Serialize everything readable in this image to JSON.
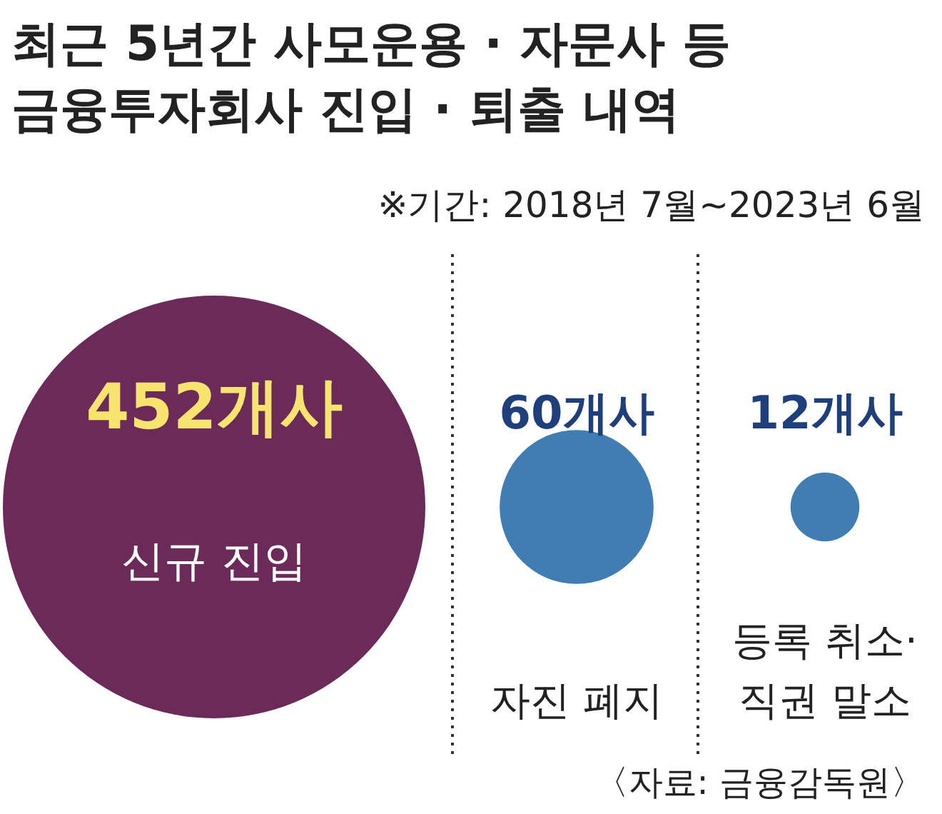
{
  "chart_data": {
    "type": "other",
    "title": "최근 5년간 사모운용 · 자문사 등 금융투자회사 진입 · 퇴출 내역",
    "subtitle": "※기간: 2018년 7월~2023년 6월",
    "categories": [
      "신규 진입",
      "자진 폐지",
      "등록 취소·직권 말소"
    ],
    "values": [
      452,
      60,
      12
    ],
    "value_labels": [
      "452개사",
      "60개사",
      "12개사"
    ],
    "colors": [
      "#6b2a5a",
      "#3f7db3",
      "#3f7db3"
    ],
    "annotations": [
      "〈자료: 금융감독원〉"
    ]
  }
}
